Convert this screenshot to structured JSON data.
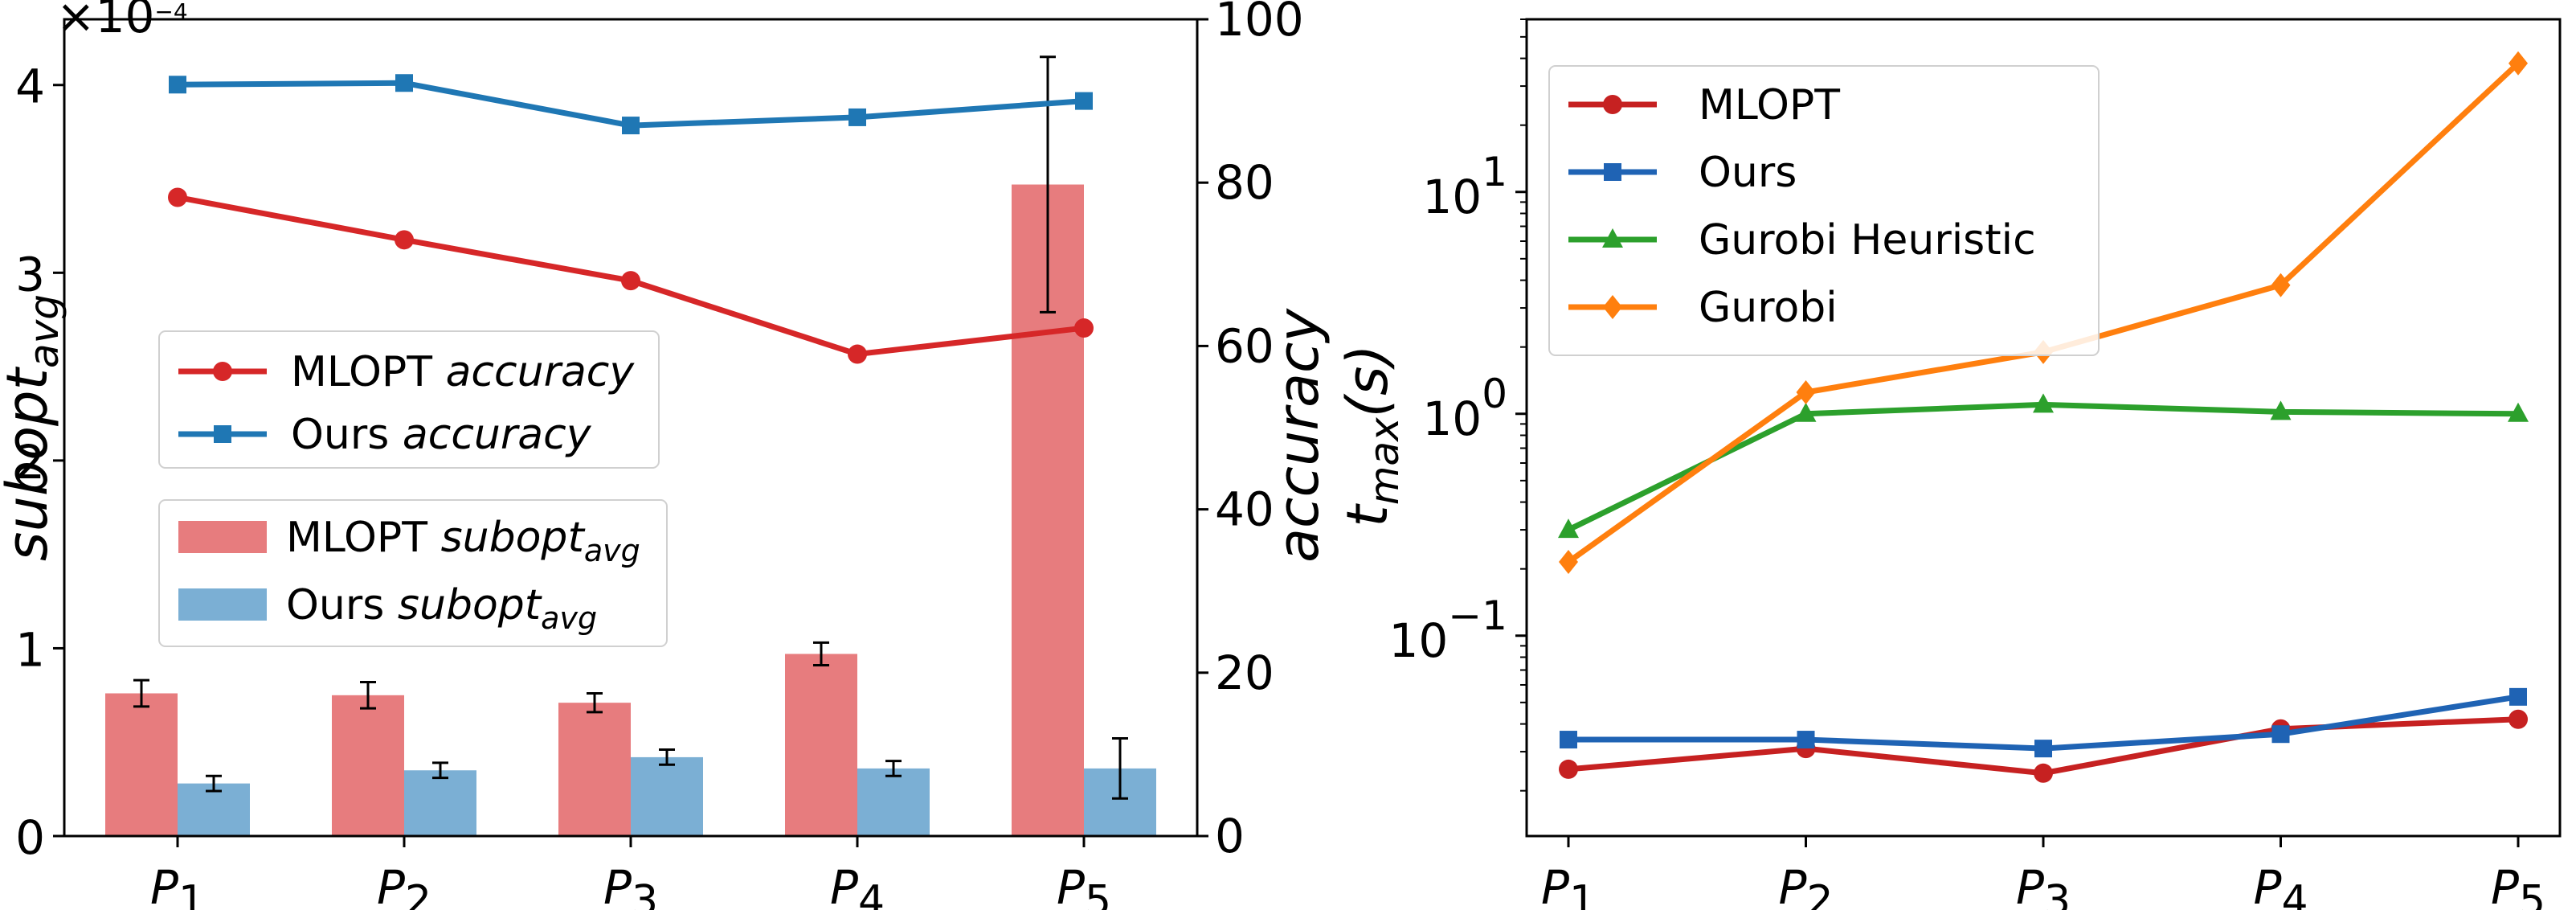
{
  "chart_data": [
    {
      "type": "bar",
      "title": "",
      "categories": [
        {
          "base": "P",
          "sub": "1"
        },
        {
          "base": "P",
          "sub": "2"
        },
        {
          "base": "P",
          "sub": "3"
        },
        {
          "base": "P",
          "sub": "4"
        },
        {
          "base": "P",
          "sub": "5"
        }
      ],
      "left_axis": {
        "label": {
          "base": "subopt",
          "sub": "avg"
        },
        "multiplier": {
          "base": "×10",
          "exp": "−4"
        },
        "ylim": [
          0,
          4.35
        ],
        "ticks": [
          0,
          1,
          2,
          3,
          4
        ],
        "tick_labels": [
          "0",
          "1",
          "2",
          "3",
          "4"
        ]
      },
      "right_axis": {
        "label": "accuracy",
        "ylim": [
          0,
          100
        ],
        "ticks": [
          0,
          20,
          40,
          60,
          80,
          100
        ],
        "tick_labels": [
          "0",
          "20",
          "40",
          "60",
          "80",
          "100"
        ]
      },
      "bar_series": [
        {
          "name": "MLOPT",
          "legend_italic": "subopt",
          "legend_sub": "avg",
          "color": "#e77c7e",
          "values": [
            0.76,
            0.75,
            0.71,
            0.97,
            3.47
          ],
          "errors": [
            0.07,
            0.07,
            0.05,
            0.06,
            0.68
          ]
        },
        {
          "name": "Ours",
          "legend_italic": "subopt",
          "legend_sub": "avg",
          "color": "#7bafd4",
          "values": [
            0.28,
            0.35,
            0.42,
            0.36,
            0.36
          ],
          "errors": [
            0.04,
            0.04,
            0.04,
            0.04,
            0.16
          ]
        }
      ],
      "line_series": [
        {
          "name": "MLOPT",
          "legend_italic": "accuracy",
          "color": "#d62728",
          "marker": "circle",
          "values": [
            78.2,
            73.0,
            68.0,
            59.0,
            62.2
          ]
        },
        {
          "name": "Ours",
          "legend_italic": "accuracy",
          "color": "#1f77b4",
          "marker": "square",
          "values": [
            92.0,
            92.2,
            87.0,
            88.0,
            90.0
          ]
        }
      ],
      "legends": {
        "lines": "mid-left",
        "bars": "mid-left-below"
      }
    },
    {
      "type": "line",
      "title": "",
      "y_scale": "log",
      "categories": [
        {
          "base": "P",
          "sub": "1"
        },
        {
          "base": "P",
          "sub": "2"
        },
        {
          "base": "P",
          "sub": "3"
        },
        {
          "base": "P",
          "sub": "4"
        },
        {
          "base": "P",
          "sub": "5"
        }
      ],
      "ylabel": {
        "base": "t",
        "sub": "max",
        "suffix": "(s)"
      },
      "ylim": [
        0.0125,
        60
      ],
      "ticks": [
        {
          "value": 0.1,
          "base": "10",
          "exp": "−1"
        },
        {
          "value": 1,
          "base": "10",
          "exp": "0"
        },
        {
          "value": 10,
          "base": "10",
          "exp": "1"
        }
      ],
      "series": [
        {
          "name": "MLOPT",
          "color": "#c62121",
          "marker": "circle",
          "values": [
            0.025,
            0.031,
            0.024,
            0.038,
            0.042
          ]
        },
        {
          "name": "Ours",
          "color": "#1f63b4",
          "marker": "square",
          "values": [
            0.034,
            0.034,
            0.031,
            0.036,
            0.053
          ]
        },
        {
          "name": "Gurobi Heuristic",
          "color": "#2ca02c",
          "marker": "triangle",
          "values": [
            0.3,
            1.0,
            1.1,
            1.02,
            1.0
          ]
        },
        {
          "name": "Gurobi",
          "color": "#ff7f0e",
          "marker": "diamond",
          "values": [
            0.215,
            1.25,
            1.9,
            3.8,
            38
          ]
        }
      ],
      "legend": "top-left"
    }
  ]
}
